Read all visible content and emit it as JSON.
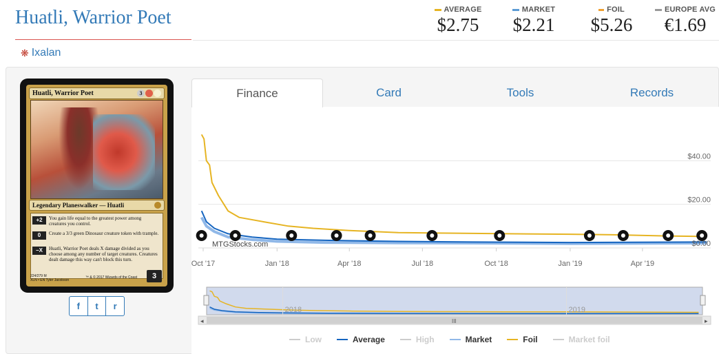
{
  "card": {
    "title": "Huatli, Warrior Poet",
    "set_name": "Ixalan",
    "set_icon": "ixalan-set-icon",
    "image": {
      "name": "Huatli, Warrior Poet",
      "mana_cost": [
        "3",
        "R",
        "W"
      ],
      "type_line": "Legendary Planeswalker — Huatli",
      "abilities": [
        {
          "cost": "+2",
          "text": "You gain life equal to the greatest power among creatures you control."
        },
        {
          "cost": "0",
          "text": "Create a 3/3 green Dinosaur creature token with trample."
        },
        {
          "cost": "−X",
          "text": "Huatli, Warrior Poet deals X damage divided as you choose among any number of target creatures. Creatures dealt damage this way can't block this turn."
        }
      ],
      "collector_line": "224/279 M",
      "set_line": "XLN • EN",
      "artist": "Tyler Jacobson",
      "copyright": "™ & © 2017 Wizards of the Coast",
      "loyalty": "3"
    }
  },
  "prices": [
    {
      "label": "AVERAGE",
      "value": "$2.75",
      "color": "#e6b422"
    },
    {
      "label": "MARKET",
      "value": "$2.21",
      "color": "#5b9bd5"
    },
    {
      "label": "FOIL",
      "value": "$5.26",
      "color": "#f0a030"
    },
    {
      "label": "EUROPE AVG",
      "value": "€1.69",
      "color": "#999999"
    }
  ],
  "share": [
    {
      "label": "f",
      "icon": "facebook-icon"
    },
    {
      "label": "t",
      "icon": "twitter-icon"
    },
    {
      "label": "r",
      "icon": "reddit-icon"
    }
  ],
  "tabs": [
    "Finance",
    "Card",
    "Tools",
    "Records"
  ],
  "active_tab": "Finance",
  "watermark": "MTGStocks.com",
  "navigator_years": [
    "2018",
    "2019"
  ],
  "chart_data": {
    "type": "line",
    "x_ticks": [
      "Oct '17",
      "Jan '18",
      "Apr '18",
      "Jul '18",
      "Oct '18",
      "Jan '19",
      "Apr '19"
    ],
    "y_ticks": [
      "$0.00",
      "$20.00",
      "$40.00"
    ],
    "ylim": [
      0,
      60
    ],
    "xlim": [
      "2017-09-25",
      "2019-06-25"
    ],
    "grid": true,
    "legend": "bottom",
    "series": [
      {
        "name": "Low",
        "visible": false,
        "color": "#cccccc",
        "points": []
      },
      {
        "name": "Average",
        "visible": true,
        "color": "#1565c0",
        "points": [
          [
            "2017-09-29",
            17
          ],
          [
            "2017-10-05",
            12
          ],
          [
            "2017-10-15",
            9
          ],
          [
            "2017-11-01",
            6.5
          ],
          [
            "2017-12-01",
            5
          ],
          [
            "2018-01-01",
            4
          ],
          [
            "2018-03-01",
            3.5
          ],
          [
            "2018-06-01",
            3
          ],
          [
            "2018-09-01",
            2.7
          ],
          [
            "2019-01-01",
            2.5
          ],
          [
            "2019-06-20",
            2.75
          ]
        ]
      },
      {
        "name": "High",
        "visible": false,
        "color": "#cccccc",
        "points": []
      },
      {
        "name": "Market",
        "visible": true,
        "color": "#90b8e8",
        "points": [
          [
            "2017-09-29",
            14
          ],
          [
            "2017-10-05",
            10
          ],
          [
            "2017-10-15",
            7.5
          ],
          [
            "2017-11-01",
            5
          ],
          [
            "2017-12-01",
            3.8
          ],
          [
            "2018-01-01",
            3
          ],
          [
            "2018-03-01",
            2.5
          ],
          [
            "2018-06-01",
            2.3
          ],
          [
            "2018-09-01",
            2.2
          ],
          [
            "2019-01-01",
            2.0
          ],
          [
            "2019-06-20",
            2.21
          ]
        ]
      },
      {
        "name": "Foil",
        "visible": true,
        "color": "#e6b422",
        "points": [
          [
            "2017-09-29",
            52
          ],
          [
            "2017-10-02",
            50
          ],
          [
            "2017-10-05",
            40
          ],
          [
            "2017-10-09",
            38
          ],
          [
            "2017-10-12",
            30
          ],
          [
            "2017-10-20",
            24
          ],
          [
            "2017-11-01",
            17
          ],
          [
            "2017-11-15",
            14
          ],
          [
            "2017-12-15",
            12
          ],
          [
            "2018-01-15",
            10
          ],
          [
            "2018-02-15",
            9
          ],
          [
            "2018-04-01",
            8
          ],
          [
            "2018-06-01",
            7
          ],
          [
            "2018-08-01",
            6.8
          ],
          [
            "2018-10-15",
            6.5
          ],
          [
            "2019-01-01",
            6.3
          ],
          [
            "2019-03-01",
            6
          ],
          [
            "2019-05-01",
            5.5
          ],
          [
            "2019-06-20",
            5.26
          ]
        ]
      },
      {
        "name": "Market foil",
        "visible": false,
        "color": "#cccccc",
        "points": []
      }
    ],
    "set_release_markers": [
      {
        "date": "2017-09-29",
        "icon": "ixalan-set-icon"
      },
      {
        "date": "2017-11-10",
        "icon": "masters-set-icon"
      },
      {
        "date": "2018-01-19",
        "icon": "rivals-set-icon"
      },
      {
        "date": "2018-03-16",
        "icon": "masters25-set-icon"
      },
      {
        "date": "2018-04-27",
        "icon": "dominaria-set-icon"
      },
      {
        "date": "2018-07-13",
        "icon": "core2019-set-icon"
      },
      {
        "date": "2018-10-05",
        "icon": "guilds-set-icon"
      },
      {
        "date": "2019-01-25",
        "icon": "allegiance-set-icon"
      },
      {
        "date": "2019-03-08",
        "icon": "modern-horizons-set-icon"
      },
      {
        "date": "2019-05-03",
        "icon": "war-spark-set-icon"
      },
      {
        "date": "2019-06-14",
        "icon": "modern-set-icon"
      }
    ]
  }
}
